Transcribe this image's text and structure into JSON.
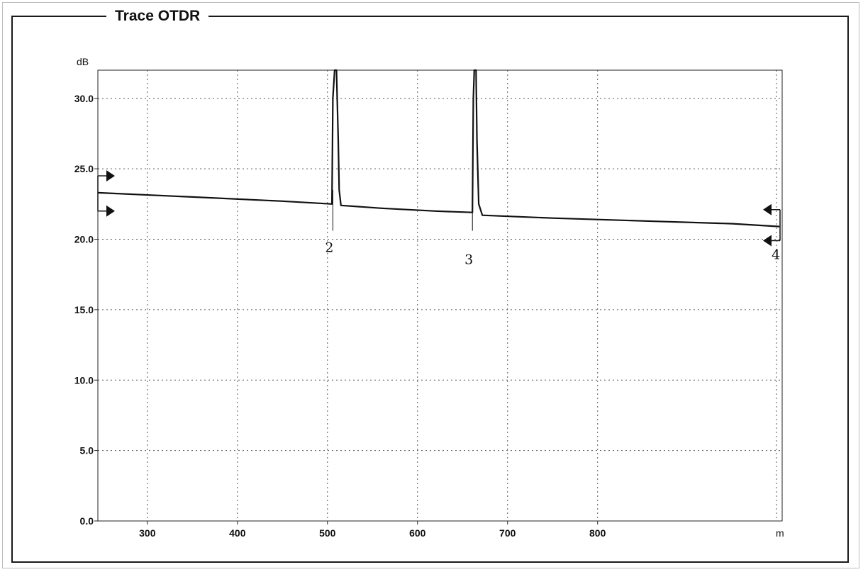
{
  "panel": {
    "title": "Trace OTDR"
  },
  "chart_data": {
    "type": "line",
    "title": "Trace OTDR",
    "xlabel": "m",
    "ylabel": "dB",
    "xlim": [
      245,
      1005
    ],
    "ylim": [
      0,
      32
    ],
    "xticks": [
      300,
      400,
      500,
      600,
      700,
      800
    ],
    "xtick_labels": [
      "300",
      "400",
      "500",
      "600",
      "700",
      "800"
    ],
    "yticks": [
      0,
      5,
      10,
      15,
      20,
      25,
      30
    ],
    "ytick_labels": [
      "0.0",
      "5.0",
      "10.0",
      "15.0",
      "20.0",
      "25.0",
      "30.0"
    ],
    "grid": true,
    "series": [
      {
        "values": [
          {
            "x": 245,
            "y": 23.3
          },
          {
            "x": 350,
            "y": 23.0
          },
          {
            "x": 450,
            "y": 22.7
          },
          {
            "x": 505,
            "y": 22.5
          },
          {
            "x": 506,
            "y": 30.0
          },
          {
            "x": 508,
            "y": 32.0
          },
          {
            "x": 510,
            "y": 32.0
          },
          {
            "x": 512,
            "y": 27.0
          },
          {
            "x": 513,
            "y": 23.5
          },
          {
            "x": 515,
            "y": 22.4
          },
          {
            "x": 560,
            "y": 22.2
          },
          {
            "x": 620,
            "y": 22.0
          },
          {
            "x": 661,
            "y": 21.9
          },
          {
            "x": 662,
            "y": 30.0
          },
          {
            "x": 663,
            "y": 32.0
          },
          {
            "x": 665,
            "y": 32.0
          },
          {
            "x": 666,
            "y": 27.0
          },
          {
            "x": 668,
            "y": 22.5
          },
          {
            "x": 672,
            "y": 21.7
          },
          {
            "x": 750,
            "y": 21.5
          },
          {
            "x": 850,
            "y": 21.3
          },
          {
            "x": 950,
            "y": 21.1
          },
          {
            "x": 1002,
            "y": 20.9
          }
        ]
      }
    ],
    "markers": [
      {
        "label": "2",
        "x": 506
      },
      {
        "label": "3",
        "x": 661
      },
      {
        "label": "4",
        "x": 1002
      }
    ]
  }
}
